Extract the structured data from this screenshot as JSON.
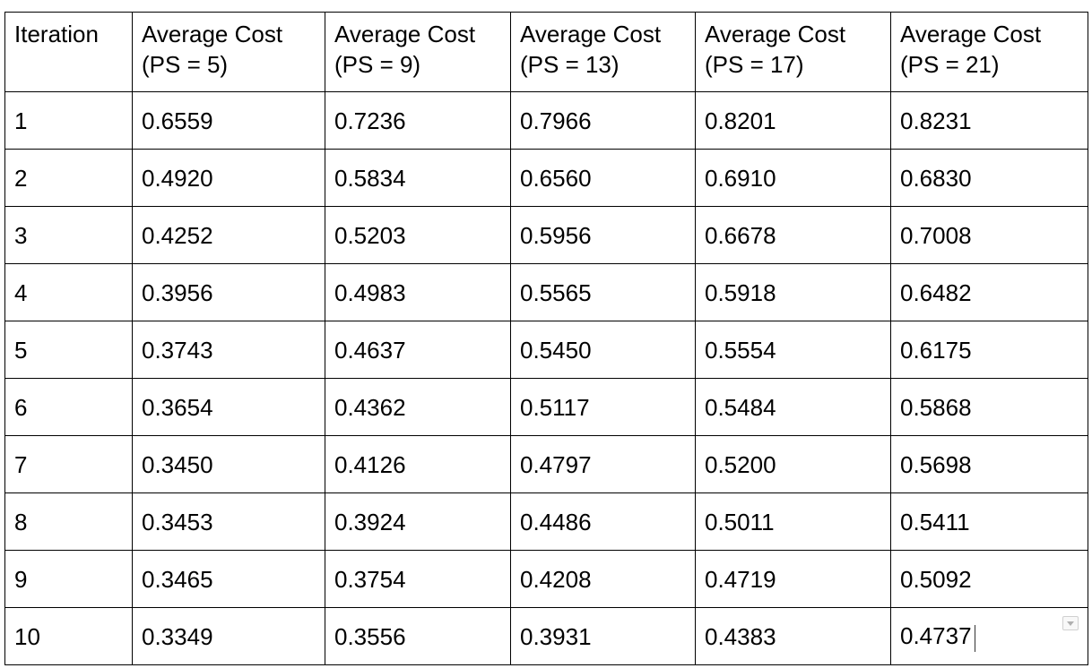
{
  "table": {
    "headers": [
      [
        "Iteration"
      ],
      [
        "Average Cost",
        "(PS = 5)"
      ],
      [
        "Average Cost",
        "(PS = 9)"
      ],
      [
        "Average Cost",
        "(PS = 13)"
      ],
      [
        "Average Cost",
        "(PS = 17)"
      ],
      [
        "Average Cost",
        "(PS = 21)"
      ]
    ],
    "rows": [
      [
        "1",
        "0.6559",
        "0.7236",
        "0.7966",
        "0.8201",
        "0.8231"
      ],
      [
        "2",
        "0.4920",
        "0.5834",
        "0.6560",
        "0.6910",
        "0.6830"
      ],
      [
        "3",
        "0.4252",
        "0.5203",
        "0.5956",
        "0.6678",
        "0.7008"
      ],
      [
        "4",
        "0.3956",
        "0.4983",
        "0.5565",
        "0.5918",
        "0.6482"
      ],
      [
        "5",
        "0.3743",
        "0.4637",
        "0.5450",
        "0.5554",
        "0.6175"
      ],
      [
        "6",
        "0.3654",
        "0.4362",
        "0.5117",
        "0.5484",
        "0.5868"
      ],
      [
        "7",
        "0.3450",
        "0.4126",
        "0.4797",
        "0.5200",
        "0.5698"
      ],
      [
        "8",
        "0.3453",
        "0.3924",
        "0.4486",
        "0.5011",
        "0.5411"
      ],
      [
        "9",
        "0.3465",
        "0.3754",
        "0.4208",
        "0.4719",
        "0.5092"
      ],
      [
        "10",
        "0.3349",
        "0.3556",
        "0.3931",
        "0.4383",
        "0.4737"
      ]
    ]
  },
  "icons": {
    "cell_dropdown": "chevron-down-icon"
  }
}
